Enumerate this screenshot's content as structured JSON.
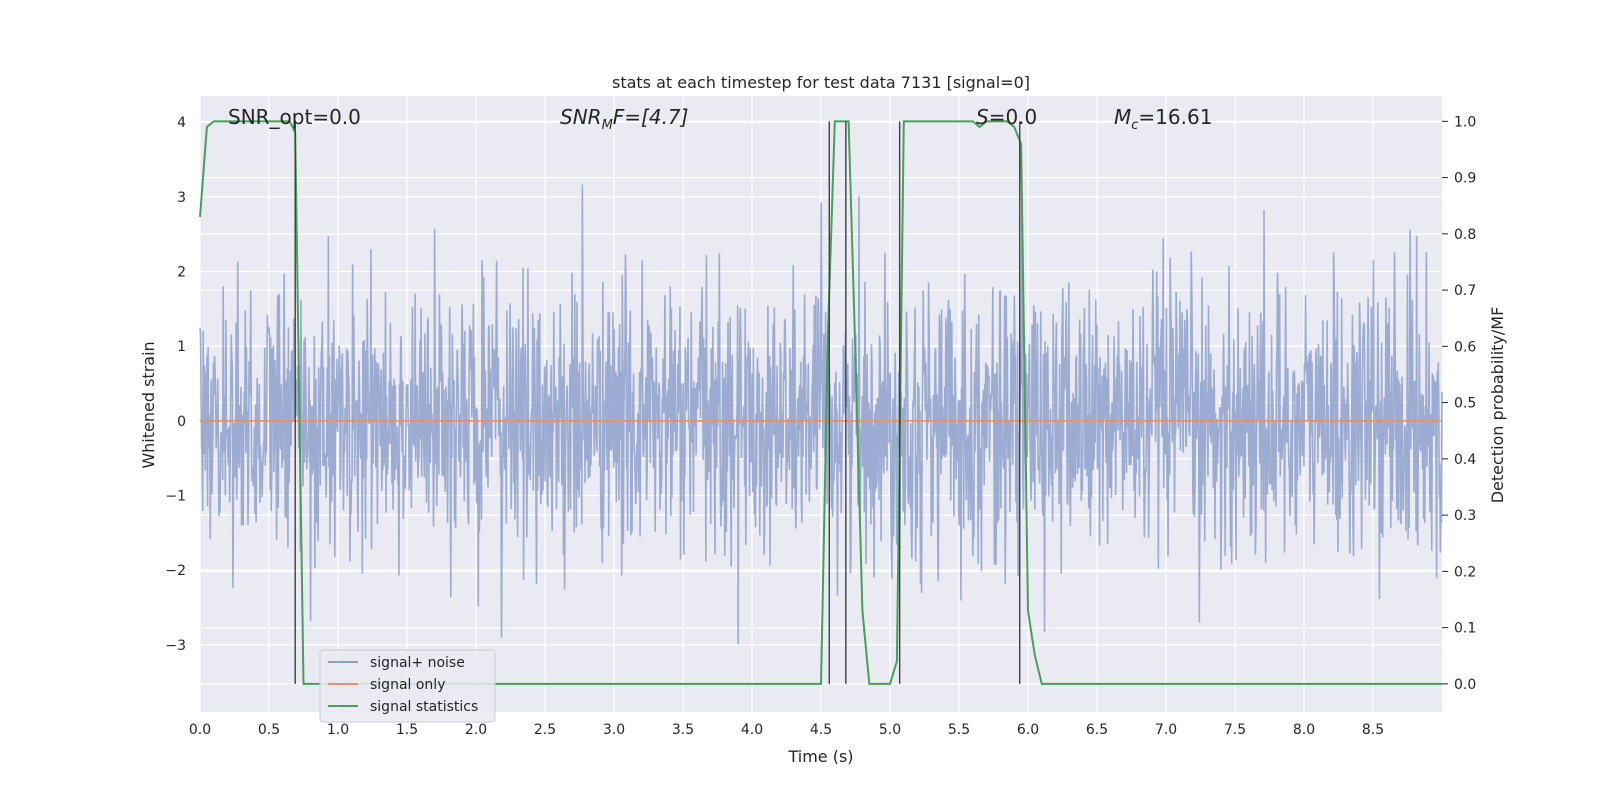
{
  "chart_data": {
    "type": "line",
    "title": "stats at each timestep for test data 7131 [signal=0]",
    "xlabel": "Time (s)",
    "ylabel": "Whitened strain",
    "ylabel_right": "Detection probability/MF",
    "xlim": [
      0,
      9
    ],
    "ylim": [
      -3.9,
      4.35
    ],
    "ylim_right": [
      -0.05,
      1.045
    ],
    "xticks": [
      "0.0",
      "0.5",
      "1.0",
      "1.5",
      "2.0",
      "2.5",
      "3.0",
      "3.5",
      "4.0",
      "4.5",
      "5.0",
      "5.5",
      "6.0",
      "6.5",
      "7.0",
      "7.5",
      "8.0",
      "8.5"
    ],
    "yticks": [
      "−3",
      "−2",
      "−1",
      "0",
      "1",
      "2",
      "3",
      "4"
    ],
    "yticks_right": [
      "0.0",
      "0.1",
      "0.2",
      "0.3",
      "0.4",
      "0.5",
      "0.6",
      "0.7",
      "0.8",
      "0.9",
      "1.0"
    ],
    "legend": {
      "placement": "lower-left",
      "entries": [
        "signal+ noise",
        "signal only",
        "signal statistics"
      ]
    },
    "colors": {
      "signal_noise": "#8da0cb",
      "signal_only": "#e0926d",
      "signal_statistics": "#4a9e5c",
      "vlines": "#404040",
      "background": "#eaeaf2",
      "grid": "#ffffff"
    },
    "annotations": {
      "snr_opt": "SNR_opt=0.0",
      "snr_mf_base": "SNR",
      "snr_mf_sub": "M",
      "snr_mf_tail": "F=[4.7]",
      "s_italic": "S",
      "s_tail": "=0.0",
      "mc_base": "M",
      "mc_sub": "c",
      "mc_tail": "=16.61"
    },
    "series": [
      {
        "name": "signal+ noise",
        "noise_sigma": 0.9,
        "samples": 2304,
        "noise_range": [
          -3.6,
          3.85
        ]
      },
      {
        "name": "signal only",
        "x": [
          0,
          9
        ],
        "y": [
          0,
          0
        ]
      },
      {
        "name": "signal statistics",
        "x": [
          0.0,
          0.05,
          0.1,
          0.15,
          0.6,
          0.65,
          0.69,
          0.75,
          0.8,
          0.85,
          4.5,
          4.55,
          4.6,
          4.65,
          4.7,
          4.75,
          4.8,
          4.85,
          4.9,
          5.0,
          5.05,
          5.1,
          5.6,
          5.65,
          5.7,
          5.85,
          5.9,
          5.95,
          6.0,
          6.05,
          6.1,
          7.0,
          9.0
        ],
        "y": [
          0.83,
          0.99,
          1.0,
          1.0,
          1.0,
          1.0,
          0.98,
          0.0,
          0.0,
          0.0,
          0.0,
          0.62,
          1.0,
          1.0,
          1.0,
          0.58,
          0.13,
          0.0,
          0.0,
          0.0,
          0.04,
          1.0,
          1.0,
          0.99,
          1.0,
          1.0,
          0.99,
          0.96,
          0.13,
          0.05,
          0.0,
          0.0,
          0.0
        ]
      }
    ],
    "vlines_x": [
      0.69,
      4.56,
      4.68,
      5.07,
      5.94
    ]
  }
}
